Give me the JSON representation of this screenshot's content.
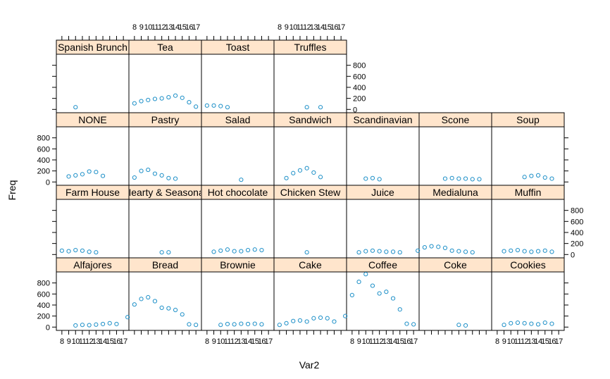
{
  "chart_data": {
    "type": "scatter",
    "layout": "trellis 7 columns x 4 rows, panels filled bottom-left to top",
    "xlabel": "Var2",
    "ylabel": "Freq",
    "x_ticks": [
      "8",
      "9",
      "10",
      "11",
      "12",
      "13",
      "14",
      "15",
      "16",
      "17"
    ],
    "y_ticks": [
      "0",
      "200",
      "400",
      "600",
      "800"
    ],
    "xlim": [
      7.5,
      17.5
    ],
    "ylim": [
      -60,
      1000
    ],
    "colors": {
      "strip": "#FFE5CC",
      "point": "#1E90C8",
      "frame": "#000000"
    },
    "marker": "open-circle",
    "panels": [
      {
        "name": "Alfajores",
        "x": [
          10,
          11,
          12,
          13,
          14,
          15,
          16
        ],
        "y": [
          30,
          40,
          35,
          45,
          55,
          70,
          55
        ]
      },
      {
        "name": "Bread",
        "x": [
          7,
          8,
          9,
          10,
          11,
          12,
          13,
          14,
          15,
          16,
          17
        ],
        "y": [
          180,
          410,
          510,
          540,
          470,
          350,
          340,
          310,
          230,
          50,
          40
        ]
      },
      {
        "name": "Brownie",
        "x": [
          10,
          11,
          12,
          13,
          14,
          15,
          16
        ],
        "y": [
          40,
          55,
          50,
          60,
          55,
          60,
          50
        ]
      },
      {
        "name": "Cake",
        "x": [
          8,
          9,
          10,
          11,
          12,
          13,
          14,
          15,
          16
        ],
        "y": [
          40,
          70,
          110,
          120,
          100,
          160,
          170,
          160,
          100
        ]
      },
      {
        "name": "Coffee",
        "x": [
          7,
          8,
          9,
          10,
          11,
          12,
          13,
          14,
          15,
          16,
          17
        ],
        "y": [
          200,
          580,
          820,
          960,
          750,
          610,
          640,
          520,
          320,
          60,
          50
        ]
      },
      {
        "name": "Coke",
        "x": [
          13,
          14
        ],
        "y": [
          40,
          30
        ]
      },
      {
        "name": "Cookies",
        "x": [
          9,
          10,
          11,
          12,
          13,
          14,
          15,
          16
        ],
        "y": [
          40,
          70,
          80,
          70,
          60,
          50,
          80,
          60
        ]
      },
      {
        "name": "Farm House",
        "x": [
          8,
          9,
          10,
          11,
          12,
          13
        ],
        "y": [
          70,
          60,
          80,
          70,
          50,
          40
        ]
      },
      {
        "name": "Hearty & Seasonal",
        "x": [
          12,
          13
        ],
        "y": [
          40,
          40
        ]
      },
      {
        "name": "Hot chocolate",
        "x": [
          9,
          10,
          11,
          12,
          13,
          14,
          15,
          16
        ],
        "y": [
          50,
          70,
          90,
          60,
          60,
          80,
          90,
          80
        ]
      },
      {
        "name": "Chicken Stew",
        "x": [
          12
        ],
        "y": [
          40
        ]
      },
      {
        "name": "Juice",
        "x": [
          9,
          10,
          11,
          12,
          13,
          14,
          15
        ],
        "y": [
          40,
          60,
          70,
          60,
          50,
          50,
          40
        ]
      },
      {
        "name": "Medialuna",
        "x": [
          7,
          8,
          9,
          10,
          11,
          12,
          13,
          14,
          15
        ],
        "y": [
          70,
          130,
          150,
          140,
          120,
          70,
          60,
          50,
          40
        ]
      },
      {
        "name": "Muffin",
        "x": [
          9,
          10,
          11,
          12,
          13,
          14,
          15,
          16
        ],
        "y": [
          60,
          70,
          80,
          60,
          50,
          60,
          70,
          50
        ]
      },
      {
        "name": "NONE",
        "x": [
          9,
          10,
          11,
          12,
          13,
          14
        ],
        "y": [
          100,
          120,
          140,
          190,
          180,
          110
        ]
      },
      {
        "name": "Pastry",
        "x": [
          8,
          9,
          10,
          11,
          12,
          13,
          14
        ],
        "y": [
          80,
          200,
          220,
          150,
          120,
          70,
          60
        ]
      },
      {
        "name": "Salad",
        "x": [
          13
        ],
        "y": [
          40
        ]
      },
      {
        "name": "Sandwich",
        "x": [
          9,
          10,
          11,
          12,
          13,
          14
        ],
        "y": [
          70,
          160,
          210,
          250,
          170,
          90
        ]
      },
      {
        "name": "Scandinavian",
        "x": [
          10,
          11,
          12
        ],
        "y": [
          60,
          70,
          50
        ]
      },
      {
        "name": "Scone",
        "x": [
          11,
          12,
          13,
          14,
          15,
          16
        ],
        "y": [
          60,
          70,
          60,
          60,
          50,
          50
        ]
      },
      {
        "name": "Soup",
        "x": [
          12,
          13,
          14,
          15,
          16
        ],
        "y": [
          90,
          110,
          120,
          80,
          60
        ]
      },
      {
        "name": "Spanish Brunch",
        "x": [
          10
        ],
        "y": [
          40
        ]
      },
      {
        "name": "Tea",
        "x": [
          8,
          9,
          10,
          11,
          12,
          13,
          14,
          15,
          16,
          17
        ],
        "y": [
          110,
          150,
          170,
          190,
          200,
          220,
          250,
          210,
          130,
          50
        ]
      },
      {
        "name": "Toast",
        "x": [
          8,
          9,
          10,
          11
        ],
        "y": [
          70,
          70,
          60,
          40
        ]
      },
      {
        "name": "Truffles",
        "x": [
          12,
          14
        ],
        "y": [
          40,
          40
        ]
      }
    ]
  }
}
